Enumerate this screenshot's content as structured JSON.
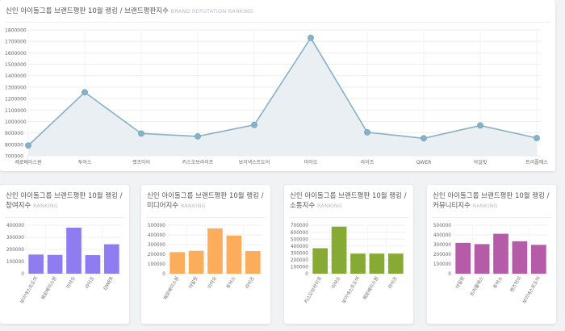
{
  "main_chart": {
    "title": "신인 아이돌그룹 브랜드평판 10월 랭킹 / 브랜드평판지수",
    "subtitle": "BRAND REPUTATION RANKING"
  },
  "panels": [
    {
      "title_line1": "신인 아이돌그룹 브랜드평판 10월 랭킹 /",
      "title_line2": "참여지수",
      "subtitle": "RANKING",
      "color": "#8e7cf0"
    },
    {
      "title_line1": "신인 아이돌그룹 브랜드평판 10월 랭킹 /",
      "title_line2": "미디어지수",
      "subtitle": "RANKING",
      "color": "#fbad5b"
    },
    {
      "title_line1": "신인 아이돌그룹 브랜드평판 10월 랭킹 /",
      "title_line2": "소통지수",
      "subtitle": "RANKING",
      "color": "#87aa35"
    },
    {
      "title_line1": "신인 아이돌그룹 브랜드평판 10월 랭킹 /",
      "title_line2": "커뮤니티지수",
      "subtitle": "RANKING",
      "color": "#b55ba8"
    }
  ],
  "chart_data": [
    {
      "type": "area",
      "title": "신인 아이돌그룹 브랜드평판 10월 랭킹 / 브랜드평판지수",
      "categories": [
        "제로베이스원",
        "투어스",
        "캣츠아이",
        "키스오브라이프",
        "보이넥스트도어",
        "미야오",
        "라이즈",
        "QWER",
        "아일릿",
        "트리플에스"
      ],
      "values": [
        790000,
        1255000,
        895000,
        870000,
        970000,
        1730000,
        905000,
        853000,
        965000,
        855000
      ],
      "ylim": [
        700000,
        1800000
      ],
      "yticks": [
        "700000",
        "800000",
        "900000",
        "1000000",
        "1100000",
        "1200000",
        "1300000",
        "1400000",
        "1500000",
        "1600000",
        "1700000",
        "1800000"
      ],
      "color": "#86b1c6",
      "fill": "#e9eff2"
    },
    {
      "type": "bar",
      "title": "신인 아이돌그룹 브랜드평판 10월 랭킹 / 참여지수",
      "categories": [
        "보이넥스트도어",
        "제로베이스원",
        "미야오",
        "라이즈",
        "QWER"
      ],
      "values": [
        158000,
        155000,
        380000,
        153000,
        243000
      ],
      "ylim": [
        0,
        400000
      ],
      "yticks": [
        "0",
        "100000",
        "200000",
        "300000",
        "400000"
      ]
    },
    {
      "type": "bar",
      "title": "신인 아이돌그룹 브랜드평판 10월 랭킹 / 미디어지수",
      "categories": [
        "제로베이스원",
        "아일릿",
        "미야오",
        "투어스",
        "라이즈"
      ],
      "values": [
        222000,
        236000,
        468000,
        393000,
        233000
      ],
      "ylim": [
        0,
        500000
      ],
      "yticks": [
        "0",
        "100000",
        "200000",
        "300000",
        "400000",
        "500000"
      ]
    },
    {
      "type": "bar",
      "title": "신인 아이돌그룹 브랜드평판 10월 랭킹 / 소통지수",
      "categories": [
        "키스오브라이프",
        "미야오",
        "보이넥스트도어",
        "제로베이스원",
        "라이즈"
      ],
      "values": [
        368000,
        680000,
        290000,
        290000,
        290000
      ],
      "ylim": [
        0,
        700000
      ],
      "yticks": [
        "0",
        "100000",
        "200000",
        "300000",
        "400000",
        "500000",
        "600000",
        "700000"
      ]
    },
    {
      "type": "bar",
      "title": "신인 아이돌그룹 브랜드평판 10월 랭킹 / 커뮤니티지수",
      "categories": [
        "아일릿",
        "트리플에스",
        "투어스",
        "캣츠아이",
        "보이넥스트도어"
      ],
      "values": [
        318000,
        305000,
        412000,
        335000,
        297000
      ],
      "ylim": [
        0,
        500000
      ],
      "yticks": [
        "0",
        "100000",
        "200000",
        "300000",
        "400000",
        "500000"
      ]
    }
  ]
}
